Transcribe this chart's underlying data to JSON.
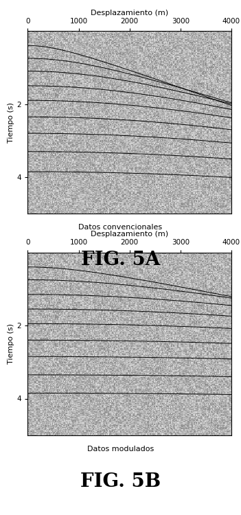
{
  "xlabel": "Desplazamiento (m)",
  "ylabel": "Tiempo (s)",
  "xlim": [
    0,
    4000
  ],
  "ylim": [
    5.0,
    0.0
  ],
  "xticks": [
    0,
    1000,
    2000,
    3000,
    4000
  ],
  "yticks": [
    2,
    4
  ],
  "bg_color": "#b8b8b8",
  "line_color": "#000000",
  "fig_label_a": "FIG. 5A",
  "fig_label_b": "FIG. 5B",
  "subtitle_a": "Datos convencionales",
  "subtitle_b": "Datos modulados",
  "n_curves": 9,
  "curve_t0_a": [
    0.4,
    0.75,
    1.1,
    1.5,
    1.9,
    2.35,
    2.8,
    3.3,
    3.85
  ],
  "curve_v_a": [
    2000,
    2200,
    2400,
    2600,
    2800,
    3000,
    3200,
    3400,
    3600
  ],
  "curve_t0_b": [
    0.4,
    0.75,
    1.15,
    1.55,
    1.95,
    2.4,
    2.85,
    3.35,
    3.85
  ],
  "curve_v_b": [
    3500,
    4000,
    4500,
    5000,
    5500,
    6000,
    6500,
    7000,
    7500
  ]
}
